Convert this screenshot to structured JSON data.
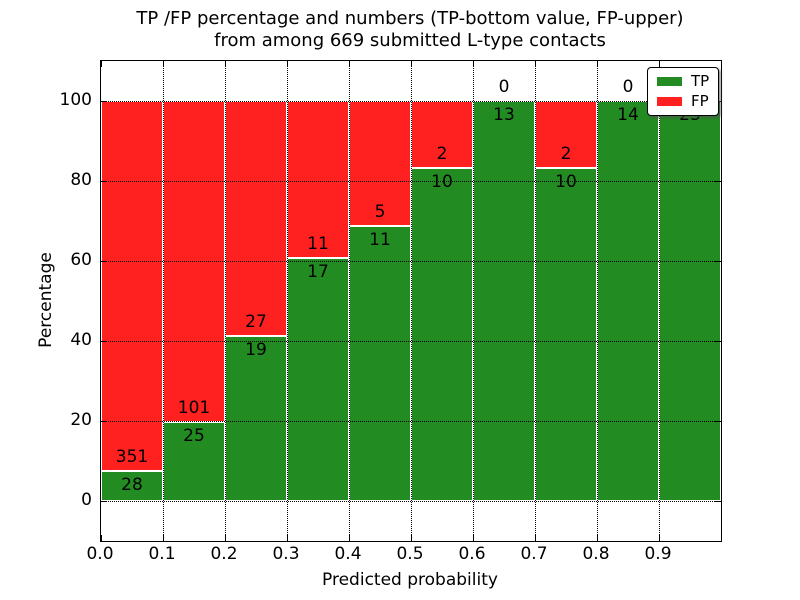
{
  "chart_data": {
    "type": "bar",
    "stacked": true,
    "normalized_to_percent": true,
    "title_lines": [
      "TP /FP percentage and numbers (TP-bottom value, FP-upper)",
      "from among 669 submitted L-type contacts"
    ],
    "xlabel": "Predicted probability",
    "ylabel": "Percentage",
    "bin_start": [
      0.0,
      0.1,
      0.2,
      0.3,
      0.4,
      0.5,
      0.6,
      0.7,
      0.8,
      0.9
    ],
    "bin_width": 0.1,
    "x_tick_labels": [
      "0.0",
      "0.1",
      "0.2",
      "0.3",
      "0.4",
      "0.5",
      "0.6",
      "0.7",
      "0.8",
      "0.9"
    ],
    "y_ticks": [
      0,
      20,
      40,
      60,
      80,
      100
    ],
    "y_tick_labels": [
      "0",
      "20",
      "40",
      "60",
      "80",
      "100"
    ],
    "xlim": [
      0.0,
      1.0
    ],
    "ylim": [
      -10,
      110
    ],
    "grid": true,
    "legend_position": "upper right",
    "series": [
      {
        "name": "TP",
        "color": "#228B22",
        "values": [
          28,
          25,
          19,
          17,
          11,
          10,
          13,
          10,
          14,
          23
        ]
      },
      {
        "name": "FP",
        "color": "#FF2020",
        "values": [
          351,
          101,
          27,
          11,
          5,
          2,
          0,
          2,
          0,
          0
        ]
      }
    ],
    "total_contacts": 669
  }
}
